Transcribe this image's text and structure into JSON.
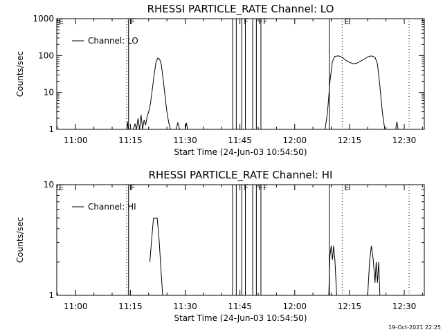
{
  "timestamp": "19-Oct-2021 22:25",
  "chart_data": [
    {
      "type": "line",
      "title": "RHESSI PARTICLE_RATE Channel: LO",
      "xlabel": "Start Time (24-Jun-03 10:54:50)",
      "ylabel": "Counts/sec",
      "yscale": "log",
      "xlim": [
        "10:54:50",
        "12:35:30"
      ],
      "ylim": [
        1,
        1000
      ],
      "x_ticks": [
        "11:00",
        "11:15",
        "11:30",
        "11:45",
        "12:00",
        "12:15",
        "12:30"
      ],
      "y_ticks": [
        "1",
        "10",
        "100",
        "1000"
      ],
      "legend": {
        "position": "top-left",
        "entries": [
          "Channel: LO"
        ]
      },
      "series": [
        {
          "name": "Channel: LO",
          "color": "#000000",
          "segments": [
            [
              [
                "11:14:00",
                1
              ],
              [
                "11:14:12",
                1.6
              ],
              [
                "11:14:24",
                1
              ]
            ],
            [
              [
                "11:15:50",
                1
              ],
              [
                "11:16:15",
                1.4
              ],
              [
                "11:16:40",
                1
              ],
              [
                "11:17:05",
                2
              ],
              [
                "11:17:30",
                1
              ],
              [
                "11:17:55",
                2.5
              ],
              [
                "11:18:20",
                1
              ],
              [
                "11:18:45",
                1.8
              ],
              [
                "11:19:10",
                1.3
              ],
              [
                "11:19:35",
                2.2
              ],
              [
                "11:20:00",
                3
              ],
              [
                "11:20:30",
                5
              ],
              [
                "11:21:00",
                12
              ],
              [
                "11:21:30",
                30
              ],
              [
                "11:22:00",
                65
              ],
              [
                "11:22:30",
                85
              ],
              [
                "11:23:00",
                80
              ],
              [
                "11:23:30",
                55
              ],
              [
                "11:24:00",
                22
              ],
              [
                "11:24:30",
                8
              ],
              [
                "11:25:00",
                3
              ],
              [
                "11:25:30",
                1.5
              ],
              [
                "11:26:00",
                1
              ]
            ],
            [
              [
                "11:27:30",
                1
              ],
              [
                "11:28:00",
                1.5
              ],
              [
                "11:28:30",
                1
              ]
            ],
            [
              [
                "11:30:00",
                1
              ],
              [
                "11:30:20",
                1.5
              ],
              [
                "11:30:40",
                1
              ]
            ],
            [
              [
                "12:08:20",
                1
              ],
              [
                "12:09:00",
                3
              ],
              [
                "12:09:40",
                20
              ],
              [
                "12:10:20",
                70
              ],
              [
                "12:11:00",
                95
              ],
              [
                "12:12:00",
                98
              ],
              [
                "12:13:00",
                90
              ],
              [
                "12:14:00",
                75
              ],
              [
                "12:15:00",
                66
              ],
              [
                "12:16:00",
                60
              ],
              [
                "12:17:00",
                62
              ],
              [
                "12:18:00",
                70
              ],
              [
                "12:19:00",
                80
              ],
              [
                "12:20:00",
                92
              ],
              [
                "12:21:00",
                98
              ],
              [
                "12:22:00",
                90
              ],
              [
                "12:22:40",
                60
              ],
              [
                "12:23:20",
                15
              ],
              [
                "12:24:00",
                3
              ],
              [
                "12:24:40",
                1
              ]
            ],
            [
              [
                "12:27:40",
                1
              ],
              [
                "12:28:00",
                1.6
              ],
              [
                "12:28:20",
                1
              ]
            ]
          ]
        }
      ],
      "solid_markers": [
        "11:14:30",
        "11:43:00",
        "11:44:00",
        "11:45:30",
        "11:46:30",
        "11:48:30",
        "11:49:30",
        "11:50:45",
        "12:09:30"
      ],
      "dotted_markers": [
        "11:14:00",
        "12:13:00",
        "12:31:20"
      ],
      "flags": [
        {
          "label": "E",
          "time": "10:54:50"
        },
        {
          "label": "F",
          "time": "11:14:30"
        },
        {
          "label": "F",
          "time": "11:45:30"
        },
        {
          "label": "F",
          "time": "11:49:30"
        },
        {
          "label": "F",
          "time": "11:50:45"
        },
        {
          "label": "E",
          "time": "12:13:00"
        }
      ]
    },
    {
      "type": "line",
      "title": "RHESSI PARTICLE_RATE Channel: HI",
      "xlabel": "Start Time (24-Jun-03 10:54:50)",
      "ylabel": "Counts/sec",
      "yscale": "log",
      "xlim": [
        "10:54:50",
        "12:35:30"
      ],
      "ylim": [
        1,
        10
      ],
      "x_ticks": [
        "11:00",
        "11:15",
        "11:30",
        "11:45",
        "12:00",
        "12:15",
        "12:30"
      ],
      "y_ticks": [
        "1",
        "10"
      ],
      "legend": {
        "position": "top-left",
        "entries": [
          "Channel: HI"
        ]
      },
      "series": [
        {
          "name": "Channel: HI",
          "color": "#000000",
          "segments": [
            [
              [
                "11:20:20",
                2
              ],
              [
                "11:20:50",
                3.2
              ],
              [
                "11:21:20",
                5
              ],
              [
                "11:22:20",
                5
              ],
              [
                "11:22:50",
                3.3
              ],
              [
                "11:23:20",
                1.8
              ],
              [
                "11:23:50",
                1
              ]
            ],
            [
              [
                "12:09:20",
                1
              ],
              [
                "12:09:40",
                2.3
              ],
              [
                "12:10:00",
                2.8
              ],
              [
                "12:10:20",
                2.1
              ],
              [
                "12:10:40",
                2.8
              ],
              [
                "12:11:00",
                2.1
              ],
              [
                "12:11:30",
                1
              ]
            ],
            [
              [
                "12:20:00",
                1
              ],
              [
                "12:20:30",
                2
              ],
              [
                "12:21:00",
                2.8
              ],
              [
                "12:21:30",
                2.1
              ],
              [
                "12:22:00",
                1.3
              ],
              [
                "12:22:20",
                2
              ],
              [
                "12:22:40",
                1.3
              ],
              [
                "12:23:00",
                2
              ],
              [
                "12:23:20",
                1
              ]
            ]
          ]
        }
      ],
      "solid_markers": [
        "11:14:30",
        "11:43:00",
        "11:44:00",
        "11:45:30",
        "11:46:30",
        "11:48:30",
        "11:49:30",
        "11:50:45",
        "12:09:30"
      ],
      "dotted_markers": [
        "11:14:00",
        "12:13:00",
        "12:31:20"
      ],
      "flags": [
        {
          "label": "E",
          "time": "10:54:50"
        },
        {
          "label": "F",
          "time": "11:14:30"
        },
        {
          "label": "F",
          "time": "11:45:30"
        },
        {
          "label": "F",
          "time": "11:49:30"
        },
        {
          "label": "F",
          "time": "11:50:45"
        },
        {
          "label": "E",
          "time": "12:13:00"
        }
      ]
    }
  ]
}
